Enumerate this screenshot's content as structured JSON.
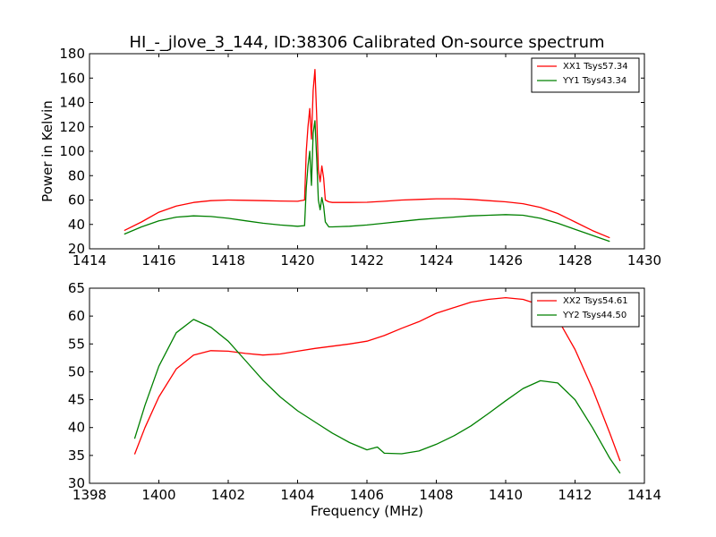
{
  "figure": {
    "xlabel": "Frequency (MHz)",
    "background": "#ffffff"
  },
  "chart_data": [
    {
      "type": "line",
      "title": "HI_-_jlove_3_144, ID:38306 Calibrated On-source spectrum",
      "xlabel": "",
      "ylabel": "Power in Kelvin",
      "xlim": [
        1414,
        1430
      ],
      "ylim": [
        20,
        180
      ],
      "xticks": [
        1414,
        1416,
        1418,
        1420,
        1422,
        1424,
        1426,
        1428,
        1430
      ],
      "yticks": [
        20,
        40,
        60,
        80,
        100,
        120,
        140,
        160,
        180
      ],
      "legend": "top-right",
      "series": [
        {
          "name": "XX1 Tsys57.34",
          "color": "#ff0000",
          "x": [
            1415,
            1415.5,
            1416,
            1416.5,
            1417,
            1417.5,
            1418,
            1418.5,
            1419,
            1419.5,
            1420,
            1420.2,
            1420.25,
            1420.3,
            1420.35,
            1420.4,
            1420.45,
            1420.5,
            1420.55,
            1420.6,
            1420.65,
            1420.7,
            1420.75,
            1420.8,
            1420.9,
            1421,
            1421.5,
            1422,
            1422.5,
            1423,
            1423.5,
            1424,
            1424.5,
            1425,
            1425.5,
            1426,
            1426.5,
            1427,
            1427.5,
            1428,
            1428.5,
            1429
          ],
          "y": [
            35,
            42,
            50,
            55,
            58,
            59.5,
            60,
            59.8,
            59.5,
            59.2,
            59,
            60,
            100,
            120,
            135,
            110,
            150,
            167,
            130,
            85,
            75,
            88,
            78,
            60,
            58.5,
            58,
            58,
            58.2,
            59,
            60,
            60.5,
            61,
            61,
            60.5,
            59.5,
            58.5,
            57,
            54,
            49,
            42,
            35,
            29
          ]
        },
        {
          "name": "YY1 Tsys43.34",
          "color": "#008000",
          "x": [
            1415,
            1415.5,
            1416,
            1416.5,
            1417,
            1417.5,
            1418,
            1418.5,
            1419,
            1419.5,
            1420,
            1420.2,
            1420.25,
            1420.3,
            1420.35,
            1420.4,
            1420.45,
            1420.5,
            1420.55,
            1420.6,
            1420.65,
            1420.7,
            1420.75,
            1420.8,
            1420.9,
            1421,
            1421.5,
            1422,
            1422.5,
            1423,
            1423.5,
            1424,
            1424.5,
            1425,
            1425.5,
            1426,
            1426.5,
            1427,
            1427.5,
            1428,
            1428.5,
            1429
          ],
          "y": [
            32,
            38,
            43,
            46,
            47,
            46.5,
            45,
            43,
            41,
            39.5,
            38.5,
            39,
            70,
            88,
            100,
            72,
            115,
            125,
            95,
            60,
            52,
            62,
            55,
            42,
            38,
            38,
            38.5,
            39.5,
            41,
            42.5,
            44,
            45,
            46,
            47,
            47.5,
            48,
            47.5,
            45,
            41,
            36,
            31,
            26
          ]
        }
      ]
    },
    {
      "type": "line",
      "title": "",
      "xlabel": "Frequency (MHz)",
      "ylabel": "",
      "xlim": [
        1398,
        1414
      ],
      "ylim": [
        30,
        65
      ],
      "xticks": [
        1398,
        1400,
        1402,
        1404,
        1406,
        1408,
        1410,
        1412,
        1414
      ],
      "yticks": [
        30,
        35,
        40,
        45,
        50,
        55,
        60,
        65
      ],
      "legend": "top-right",
      "series": [
        {
          "name": "XX2 Tsys54.61",
          "color": "#ff0000",
          "x": [
            1399.3,
            1399.6,
            1400,
            1400.5,
            1401,
            1401.5,
            1402,
            1402.5,
            1403,
            1403.5,
            1404,
            1404.5,
            1405,
            1405.5,
            1406,
            1406.5,
            1407,
            1407.5,
            1408,
            1408.5,
            1409,
            1409.5,
            1410,
            1410.5,
            1411,
            1411.5,
            1412,
            1412.5,
            1413,
            1413.3
          ],
          "y": [
            35.2,
            40,
            45.5,
            50.5,
            53,
            53.8,
            53.7,
            53.3,
            53,
            53.2,
            53.7,
            54.2,
            54.6,
            55,
            55.5,
            56.5,
            57.8,
            59,
            60.5,
            61.5,
            62.5,
            63,
            63.3,
            63,
            62,
            59.5,
            54,
            47,
            39,
            34
          ]
        },
        {
          "name": "YY2 Tsys44.50",
          "color": "#008000",
          "x": [
            1399.3,
            1399.6,
            1400,
            1400.5,
            1401,
            1401.5,
            1402,
            1402.5,
            1403,
            1403.5,
            1404,
            1404.5,
            1405,
            1405.5,
            1406,
            1406.3,
            1406.5,
            1407,
            1407.5,
            1408,
            1408.5,
            1409,
            1409.5,
            1410,
            1410.5,
            1411,
            1411.5,
            1412,
            1412.5,
            1413,
            1413.3
          ],
          "y": [
            38,
            44,
            51,
            57,
            59.4,
            58,
            55.5,
            52,
            48.5,
            45.5,
            43,
            41,
            39,
            37.3,
            36,
            36.5,
            35.4,
            35.3,
            35.8,
            37,
            38.5,
            40.3,
            42.5,
            44.8,
            47,
            48.4,
            48,
            45,
            40,
            34.5,
            31.8
          ]
        }
      ]
    }
  ]
}
